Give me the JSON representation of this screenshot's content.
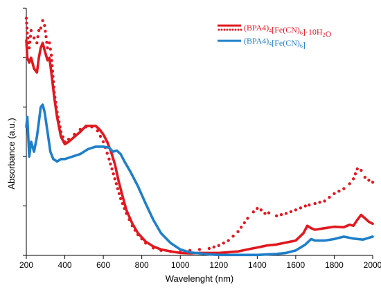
{
  "chart_data": {
    "type": "line",
    "title": "",
    "xlabel": "Wavelenght (nm)",
    "ylabel": "Absorbance  (a.u.)",
    "xlim": [
      200,
      2000
    ],
    "ylim": [
      0,
      5
    ],
    "xticks": [
      200,
      400,
      600,
      800,
      1000,
      1200,
      1400,
      1600,
      1800,
      2000
    ],
    "yticks": [
      0,
      1,
      2,
      3,
      4,
      5
    ],
    "y_tick_labels_shown": false,
    "grid": false,
    "legend_position": "top-right",
    "series": [
      {
        "name": "(BPA4)4[Fe(CN)6]·10H2O",
        "color": "#e0191f",
        "style": "solid",
        "x": [
          200,
          205,
          215,
          225,
          240,
          255,
          265,
          275,
          285,
          295,
          310,
          320,
          330,
          345,
          360,
          380,
          400,
          420,
          450,
          480,
          510,
          540,
          560,
          580,
          600,
          620,
          640,
          660,
          680,
          700,
          720,
          750,
          780,
          820,
          860,
          900,
          950,
          1000,
          1050,
          1100,
          1200,
          1300,
          1350,
          1400,
          1450,
          1500,
          1550,
          1600,
          1640,
          1660,
          1680,
          1700,
          1750,
          1800,
          1850,
          1880,
          1900,
          1920,
          1940,
          1960,
          1980,
          2000
        ],
        "y": [
          4.35,
          4.0,
          3.9,
          4.0,
          3.78,
          3.7,
          4.0,
          4.2,
          4.3,
          4.15,
          3.95,
          4.0,
          3.7,
          3.2,
          2.8,
          2.4,
          2.25,
          2.3,
          2.4,
          2.5,
          2.62,
          2.62,
          2.62,
          2.55,
          2.45,
          2.3,
          2.1,
          1.85,
          1.5,
          1.2,
          0.92,
          0.65,
          0.45,
          0.28,
          0.18,
          0.12,
          0.08,
          0.05,
          0.04,
          0.05,
          0.05,
          0.08,
          0.12,
          0.16,
          0.2,
          0.22,
          0.26,
          0.3,
          0.45,
          0.6,
          0.55,
          0.52,
          0.55,
          0.58,
          0.57,
          0.62,
          0.6,
          0.72,
          0.82,
          0.75,
          0.68,
          0.64
        ]
      },
      {
        "name": "(BPA4)4[Fe(CN)6]·10H2O",
        "color": "#e0191f",
        "style": "dotted",
        "x": [
          200,
          205,
          215,
          225,
          240,
          255,
          265,
          275,
          285,
          295,
          310,
          320,
          330,
          345,
          360,
          380,
          400,
          420,
          450,
          480,
          510,
          540,
          570,
          600,
          630,
          660,
          690,
          720,
          750,
          780,
          820,
          860,
          900,
          950,
          1000,
          1050,
          1100,
          1150,
          1200,
          1250,
          1300,
          1350,
          1380,
          1400,
          1420,
          1440,
          1460,
          1500,
          1550,
          1600,
          1650,
          1670,
          1700,
          1750,
          1800,
          1850,
          1880,
          1900,
          1920,
          1940,
          1960,
          1980,
          2000
        ],
        "y": [
          4.8,
          4.5,
          4.2,
          4.55,
          4.4,
          4.3,
          4.55,
          4.6,
          4.75,
          4.65,
          4.2,
          4.3,
          4.05,
          3.3,
          2.9,
          2.5,
          2.3,
          2.35,
          2.45,
          2.55,
          2.6,
          2.6,
          2.52,
          2.3,
          1.95,
          1.55,
          1.15,
          0.85,
          0.6,
          0.42,
          0.25,
          0.15,
          0.1,
          0.08,
          0.07,
          0.1,
          0.12,
          0.14,
          0.2,
          0.3,
          0.48,
          0.75,
          0.88,
          0.95,
          0.92,
          0.85,
          0.86,
          0.8,
          0.85,
          0.92,
          1.0,
          1.02,
          1.05,
          1.1,
          1.25,
          1.35,
          1.45,
          1.55,
          1.75,
          1.72,
          1.58,
          1.52,
          1.48
        ]
      },
      {
        "name": "(BPA4)4[Fe(CN)6]",
        "color": "#1f7fc9",
        "style": "solid",
        "x": [
          200,
          205,
          215,
          225,
          240,
          255,
          265,
          275,
          285,
          295,
          310,
          325,
          340,
          360,
          380,
          400,
          440,
          480,
          520,
          560,
          600,
          630,
          650,
          670,
          690,
          710,
          740,
          780,
          820,
          860,
          900,
          950,
          1000,
          1050,
          1100,
          1150,
          1200,
          1300,
          1400,
          1450,
          1500,
          1550,
          1600,
          1650,
          1680,
          1700,
          1750,
          1800,
          1850,
          1900,
          1950,
          2000
        ],
        "y": [
          2.6,
          2.8,
          2.0,
          2.3,
          2.1,
          2.4,
          2.7,
          3.0,
          3.05,
          2.9,
          2.5,
          2.1,
          1.95,
          1.9,
          1.95,
          1.95,
          2.0,
          2.05,
          2.15,
          2.2,
          2.2,
          2.18,
          2.1,
          2.12,
          2.05,
          1.9,
          1.7,
          1.4,
          1.05,
          0.72,
          0.45,
          0.25,
          0.12,
          0.06,
          0.04,
          0.02,
          0.01,
          0.01,
          0.01,
          0.02,
          0.03,
          0.05,
          0.1,
          0.22,
          0.33,
          0.3,
          0.3,
          0.33,
          0.38,
          0.34,
          0.32,
          0.38
        ]
      }
    ],
    "legend": [
      {
        "base": "(BPA4)",
        "sub1": "4",
        "mid": "[Fe(CN)",
        "sub2": "6",
        "tail": "]·10H",
        "sub3": "2",
        "end": "O",
        "color": "#e0191f"
      },
      {
        "base": "(BPA4)",
        "sub1": "4",
        "mid": "[Fe(CN)",
        "sub2": "6",
        "tail": "]",
        "sub3": "",
        "end": "",
        "color": "#1f7fc9"
      }
    ]
  }
}
